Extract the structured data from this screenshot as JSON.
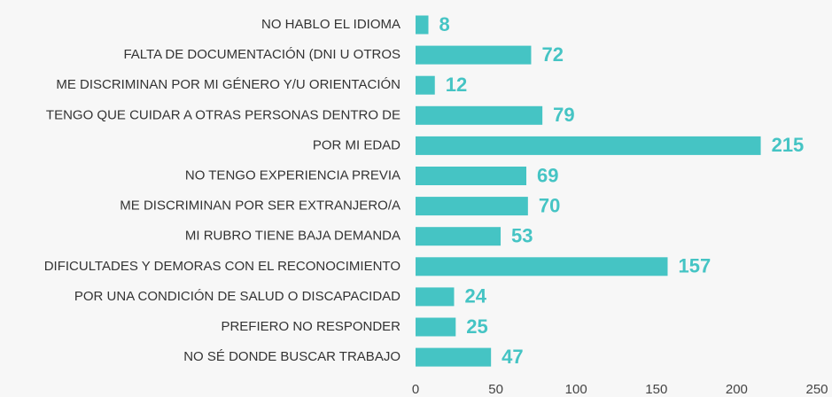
{
  "chart_data": {
    "type": "bar",
    "orientation": "horizontal",
    "categories": [
      "NO HABLO EL IDIOMA",
      "FALTA DE DOCUMENTACIÓN (DNI U OTROS",
      "ME DISCRIMINAN POR MI GÉNERO Y/U ORIENTACIÓN",
      "TENGO QUE CUIDAR A OTRAS PERSONAS DENTRO DE",
      "POR MI EDAD",
      "NO TENGO EXPERIENCIA PREVIA",
      "ME DISCRIMINAN POR SER EXTRANJERO/A",
      "MI RUBRO TIENE BAJA DEMANDA",
      "DIFICULTADES Y DEMORAS CON EL RECONOCIMIENTO",
      "POR UNA CONDICIÓN DE SALUD O DISCAPACIDAD",
      "PREFIERO NO RESPONDER",
      "NO SÉ DONDE BUSCAR TRABAJO"
    ],
    "values": [
      8,
      72,
      12,
      79,
      215,
      69,
      70,
      53,
      157,
      24,
      25,
      47
    ],
    "color": "#45c4c4",
    "xlim": [
      0,
      250
    ],
    "xticks": [
      0,
      50,
      100,
      150,
      200,
      250
    ],
    "grid": false
  }
}
